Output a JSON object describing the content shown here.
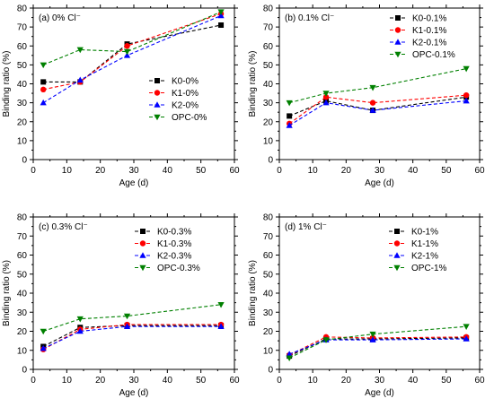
{
  "chart_data": [
    {
      "type": "line",
      "title": "(a) 0% Cl⁻",
      "xlabel": "Age (d)",
      "ylabel": "Binding ratio (%)",
      "xlim": [
        0,
        60
      ],
      "ylim": [
        0,
        80
      ],
      "xticks": [
        "0",
        "10",
        "20",
        "30",
        "40",
        "50",
        "60"
      ],
      "yticks": [
        "0",
        "10",
        "20",
        "30",
        "40",
        "50",
        "60",
        "70",
        "80"
      ],
      "x": [
        3,
        14,
        28,
        56
      ],
      "legend_position": "middle-right",
      "series": [
        {
          "name": "K0-0%",
          "color": "#000000",
          "marker": "square",
          "values": [
            41,
            41,
            61,
            71
          ]
        },
        {
          "name": "K1-0%",
          "color": "#ff0000",
          "marker": "circle",
          "values": [
            37,
            41,
            60,
            77
          ]
        },
        {
          "name": "K2-0%",
          "color": "#0000ff",
          "marker": "triangle-up",
          "values": [
            30,
            42,
            55,
            76
          ]
        },
        {
          "name": "OPC-0%",
          "color": "#008000",
          "marker": "triangle-down",
          "values": [
            50,
            58,
            57,
            78
          ]
        }
      ]
    },
    {
      "type": "line",
      "title": "(b) 0.1% Cl⁻",
      "xlabel": "Age (d)",
      "ylabel": "Binding ratio (%)",
      "xlim": [
        0,
        60
      ],
      "ylim": [
        0,
        80
      ],
      "xticks": [
        "0",
        "10",
        "20",
        "30",
        "40",
        "50",
        "60"
      ],
      "yticks": [
        "0",
        "10",
        "20",
        "30",
        "40",
        "50",
        "60",
        "70",
        "80"
      ],
      "x": [
        3,
        14,
        28,
        56
      ],
      "legend_position": "top-right",
      "series": [
        {
          "name": "K0-0.1%",
          "color": "#000000",
          "marker": "square",
          "values": [
            23,
            31,
            26,
            33
          ]
        },
        {
          "name": "K1-0.1%",
          "color": "#ff0000",
          "marker": "circle",
          "values": [
            19,
            33,
            30,
            34
          ]
        },
        {
          "name": "K2-0.1%",
          "color": "#0000ff",
          "marker": "triangle-up",
          "values": [
            18,
            30,
            26,
            31
          ]
        },
        {
          "name": "OPC-0.1%",
          "color": "#008000",
          "marker": "triangle-down",
          "values": [
            30,
            35,
            38,
            48
          ]
        }
      ]
    },
    {
      "type": "line",
      "title": "(c) 0.3% Cl⁻",
      "xlabel": "Age (d)",
      "ylabel": "Binding ratio (%)",
      "xlim": [
        0,
        60
      ],
      "ylim": [
        0,
        80
      ],
      "xticks": [
        "0",
        "10",
        "20",
        "30",
        "40",
        "50",
        "60"
      ],
      "yticks": [
        "0",
        "10",
        "20",
        "30",
        "40",
        "50",
        "60",
        "70",
        "80"
      ],
      "x": [
        3,
        14,
        28,
        56
      ],
      "legend_position": "top-right",
      "series": [
        {
          "name": "K0-0.3%",
          "color": "#000000",
          "marker": "square",
          "values": [
            12,
            22,
            23,
            23
          ]
        },
        {
          "name": "K1-0.3%",
          "color": "#ff0000",
          "marker": "circle",
          "values": [
            10.5,
            21,
            23.5,
            23.5
          ]
        },
        {
          "name": "K2-0.3%",
          "color": "#0000ff",
          "marker": "triangle-up",
          "values": [
            11,
            20,
            22.5,
            22.5
          ]
        },
        {
          "name": "OPC-0.3%",
          "color": "#008000",
          "marker": "triangle-down",
          "values": [
            20,
            26.5,
            28,
            34
          ]
        }
      ]
    },
    {
      "type": "line",
      "title": "(d) 1% Cl⁻",
      "xlabel": "Age (d)",
      "ylabel": "Binding ratio (%)",
      "xlim": [
        0,
        60
      ],
      "ylim": [
        0,
        80
      ],
      "xticks": [
        "0",
        "10",
        "20",
        "30",
        "40",
        "50",
        "60"
      ],
      "yticks": [
        "0",
        "10",
        "20",
        "30",
        "40",
        "50",
        "60",
        "70",
        "80"
      ],
      "x": [
        3,
        14,
        28,
        56
      ],
      "legend_position": "top-right",
      "series": [
        {
          "name": "K0-1%",
          "color": "#000000",
          "marker": "square",
          "values": [
            7,
            16,
            16,
            16.5
          ]
        },
        {
          "name": "K1-1%",
          "color": "#ff0000",
          "marker": "circle",
          "values": [
            7.5,
            17,
            16.5,
            17
          ]
        },
        {
          "name": "K2-1%",
          "color": "#0000ff",
          "marker": "triangle-up",
          "values": [
            8,
            15.5,
            15.5,
            16
          ]
        },
        {
          "name": "OPC-1%",
          "color": "#008000",
          "marker": "triangle-down",
          "values": [
            6,
            15.5,
            18.5,
            22.5
          ]
        }
      ]
    }
  ]
}
